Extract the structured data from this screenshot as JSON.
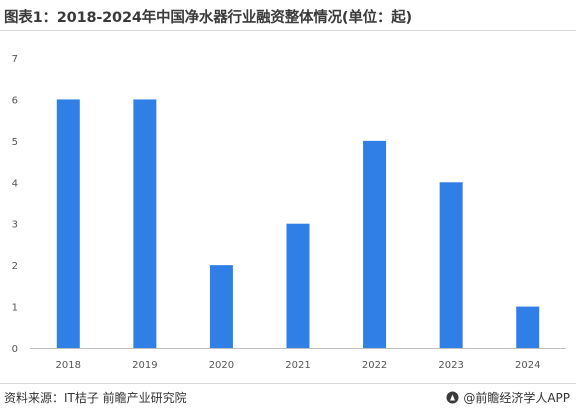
{
  "header": {
    "title": "图表1：2018-2024年中国净水器行业融资整体情况(单位：起)"
  },
  "footer": {
    "source": "资料来源：IT桔子 前瞻产业研究院",
    "brand": "@前瞻经济学人APP",
    "brand_logo": "qianzhan-logo-icon"
  },
  "colors": {
    "bar": "#2f7fe6",
    "axis": "#c0c0c0",
    "text": "#555555"
  },
  "chart_data": {
    "type": "bar",
    "title": "图表1：2018-2024年中国净水器行业融资整体情况(单位：起)",
    "xlabel": "",
    "ylabel": "",
    "categories": [
      "2018",
      "2019",
      "2020",
      "2021",
      "2022",
      "2023",
      "2024"
    ],
    "values": [
      6,
      6,
      2,
      3,
      5,
      4,
      1
    ],
    "ylim": [
      0,
      7
    ],
    "yticks": [
      "0",
      "1",
      "2",
      "3",
      "4",
      "5",
      "6",
      "7"
    ],
    "grid": false,
    "legend": "none"
  }
}
